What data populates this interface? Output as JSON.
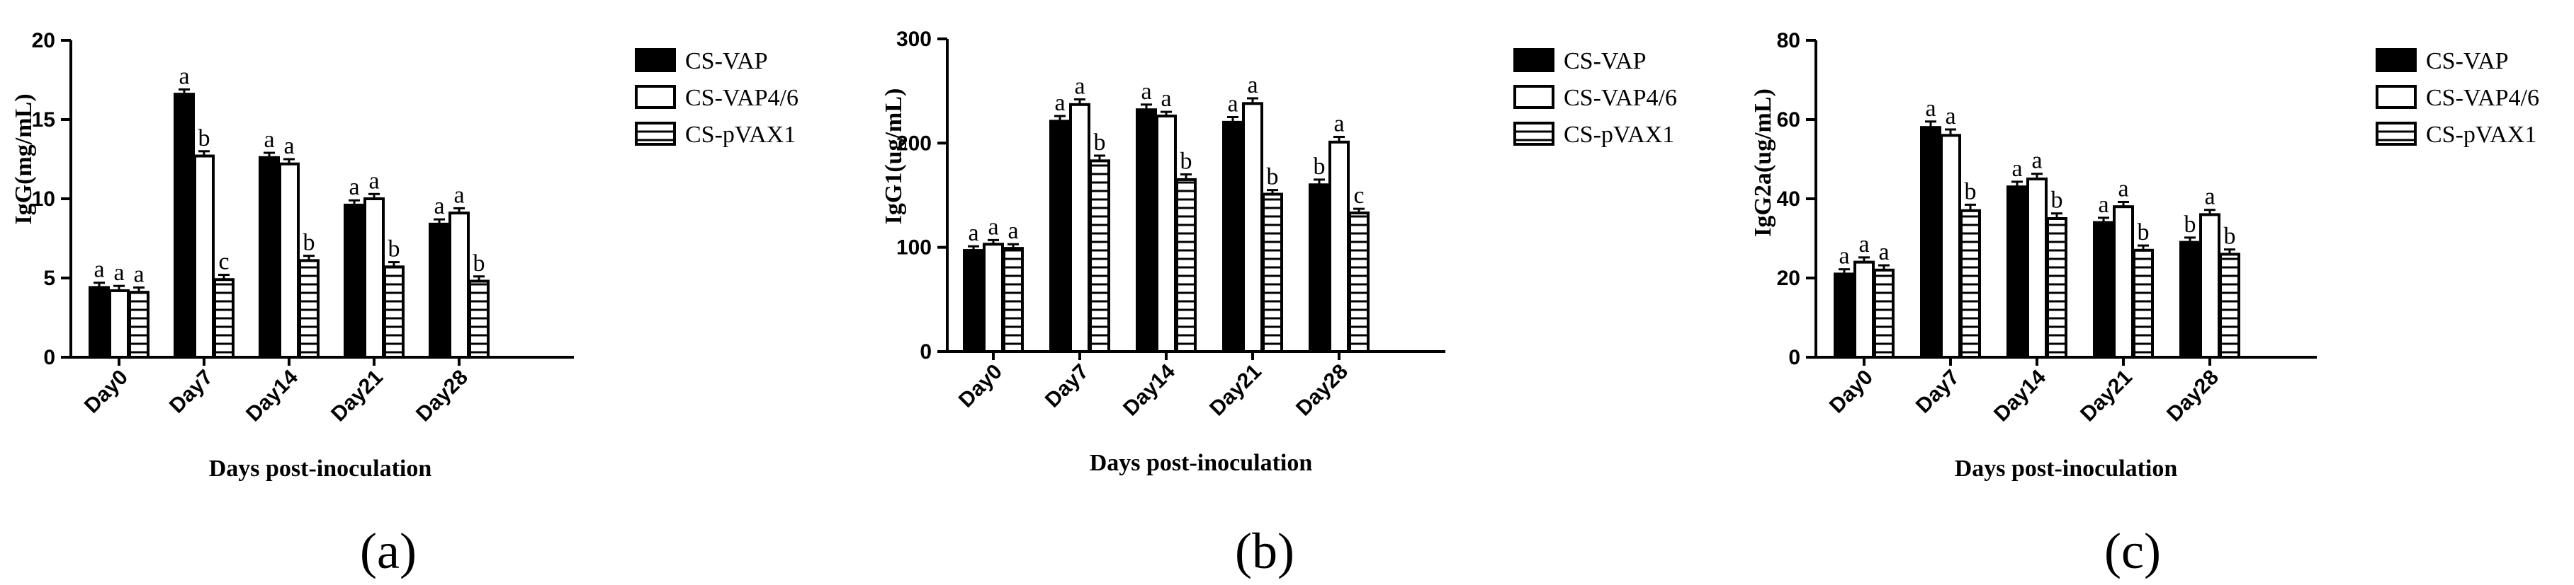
{
  "colors": {
    "ink": "#000000",
    "paper": "#ffffff"
  },
  "chart_data": [
    {
      "type": "bar",
      "panel_label": "(a)",
      "ylabel": "IgG(mg/mL)",
      "xlabel": "Days post-inoculation",
      "categories": [
        "Day0",
        "Day7",
        "Day14",
        "Day21",
        "Day28"
      ],
      "ylim": [
        0,
        20
      ],
      "yticks": [
        0,
        5,
        10,
        15,
        20
      ],
      "legend_position": "top-right",
      "series": [
        {
          "name": "CS-VAP",
          "pattern": "solid",
          "values": [
            4.4,
            16.6,
            12.6,
            9.6,
            8.4
          ],
          "errors": [
            0.3,
            0.3,
            0.3,
            0.3,
            0.3
          ],
          "labels": [
            "a",
            "a",
            "a",
            "a",
            "a"
          ]
        },
        {
          "name": "CS-VAP4/6",
          "pattern": "white",
          "values": [
            4.2,
            12.7,
            12.2,
            10.0,
            9.1
          ],
          "errors": [
            0.3,
            0.3,
            0.3,
            0.3,
            0.3
          ],
          "labels": [
            "a",
            "b",
            "a",
            "a",
            "a"
          ]
        },
        {
          "name": "CS-pVAX1",
          "pattern": "hatch",
          "values": [
            4.1,
            4.9,
            6.1,
            5.7,
            4.8
          ],
          "errors": [
            0.3,
            0.3,
            0.3,
            0.3,
            0.3
          ],
          "labels": [
            "a",
            "c",
            "b",
            "b",
            "b"
          ]
        }
      ]
    },
    {
      "type": "bar",
      "panel_label": "(b)",
      "ylabel": "IgG1(ug/mL)",
      "xlabel": "Days post-inoculation",
      "categories": [
        "Day0",
        "Day7",
        "Day14",
        "Day21",
        "Day28"
      ],
      "ylim": [
        0,
        300
      ],
      "yticks": [
        0,
        100,
        200,
        300
      ],
      "legend_position": "top-right",
      "series": [
        {
          "name": "CS-VAP",
          "pattern": "solid",
          "values": [
            97,
            221,
            232,
            220,
            160
          ],
          "errors": [
            4,
            5,
            5,
            5,
            5
          ],
          "labels": [
            "a",
            "a",
            "a",
            "a",
            "b"
          ]
        },
        {
          "name": "CS-VAP4/6",
          "pattern": "white",
          "values": [
            103,
            237,
            226,
            238,
            201
          ],
          "errors": [
            4,
            5,
            4,
            5,
            5
          ],
          "labels": [
            "a",
            "a",
            "a",
            "a",
            "a"
          ]
        },
        {
          "name": "CS-pVAX1",
          "pattern": "hatch",
          "values": [
            99,
            183,
            165,
            151,
            133
          ],
          "errors": [
            4,
            5,
            5,
            4,
            4
          ],
          "labels": [
            "a",
            "b",
            "b",
            "b",
            "c"
          ]
        }
      ]
    },
    {
      "type": "bar",
      "panel_label": "(c)",
      "ylabel": "IgG2a(ug/mL)",
      "xlabel": "Days post-inoculation",
      "categories": [
        "Day0",
        "Day7",
        "Day14",
        "Day21",
        "Day28"
      ],
      "ylim": [
        0,
        80
      ],
      "yticks": [
        0,
        20,
        40,
        60,
        80
      ],
      "legend_position": "top-right",
      "series": [
        {
          "name": "CS-VAP",
          "pattern": "solid",
          "values": [
            21,
            58,
            43,
            34,
            29
          ],
          "errors": [
            1.2,
            1.5,
            1.3,
            1.2,
            1.2
          ],
          "labels": [
            "a",
            "a",
            "a",
            "a",
            "b"
          ]
        },
        {
          "name": "CS-VAP4/6",
          "pattern": "white",
          "values": [
            24,
            56,
            45,
            38,
            36
          ],
          "errors": [
            1.2,
            1.5,
            1.3,
            1.2,
            1.2
          ],
          "labels": [
            "a",
            "a",
            "a",
            "a",
            "a"
          ]
        },
        {
          "name": "CS-pVAX1",
          "pattern": "hatch",
          "values": [
            22,
            37,
            35,
            27,
            26
          ],
          "errors": [
            1.2,
            1.5,
            1.3,
            1.2,
            1.2
          ],
          "labels": [
            "a",
            "b",
            "b",
            "b",
            "b"
          ]
        }
      ]
    }
  ]
}
